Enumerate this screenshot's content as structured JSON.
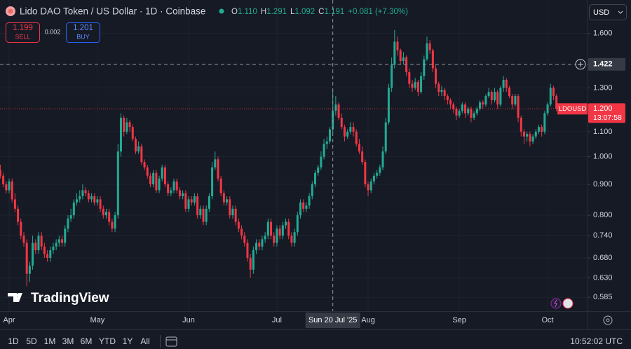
{
  "header": {
    "title": "Lido DAO Token / US Dollar · 1D · Coinbase",
    "ohlc": [
      {
        "label": "O",
        "value": "1.110"
      },
      {
        "label": "H",
        "value": "1.291"
      },
      {
        "label": "L",
        "value": "1.092"
      },
      {
        "label": "C",
        "value": "1.191"
      }
    ],
    "change": "+0.081 (+7.30%)",
    "sell": {
      "price": "1.199",
      "label": "SELL"
    },
    "spread": "0.002",
    "buy": {
      "price": "1.201",
      "label": "BUY"
    },
    "currency": "USD"
  },
  "watermark": "TradingView",
  "toolbar": {
    "ranges": [
      "1D",
      "5D",
      "1M",
      "3M",
      "6M",
      "YTD",
      "1Y",
      "All"
    ],
    "time": "10:52:02 UTC"
  },
  "chart_data": {
    "type": "candlestick",
    "log_scale": true,
    "grid": true,
    "up_color": "#22ab94",
    "down_color": "#f23645",
    "ylim": [
      0.555,
      1.817
    ],
    "yticks": [
      0.585,
      {
        "value": 0.63,
        "label": "0.630"
      },
      {
        "value": 0.68,
        "label": "0.680"
      },
      {
        "value": 0.74,
        "label": "0.740"
      },
      {
        "value": 0.8,
        "label": "0.800"
      },
      {
        "value": 0.9,
        "label": "0.900"
      },
      {
        "value": 1.0,
        "label": "1.000"
      },
      {
        "value": 1.1,
        "label": "1.100"
      },
      {
        "value": 1.3,
        "label": "1.300"
      },
      {
        "value": 1.6,
        "label": "1.600"
      }
    ],
    "crosshair": {
      "price": 1.422,
      "category": 113,
      "date_label": "Sun 20 Jul '25"
    },
    "last_price": {
      "value": 1.2,
      "label": "1.200",
      "countdown": "13:07:58"
    },
    "categories": [
      null,
      null,
      null,
      "Apr",
      null,
      null,
      null,
      null,
      null,
      null,
      null,
      null,
      null,
      null,
      null,
      null,
      null,
      null,
      null,
      null,
      null,
      null,
      null,
      null,
      null,
      null,
      null,
      null,
      null,
      null,
      null,
      null,
      null,
      "May",
      null,
      null,
      null,
      null,
      null,
      null,
      null,
      null,
      null,
      null,
      null,
      null,
      null,
      null,
      null,
      null,
      null,
      null,
      null,
      null,
      null,
      null,
      null,
      null,
      null,
      null,
      null,
      null,
      null,
      null,
      "Jun",
      null,
      null,
      null,
      null,
      null,
      null,
      null,
      null,
      null,
      null,
      null,
      null,
      null,
      null,
      null,
      null,
      null,
      null,
      null,
      null,
      null,
      null,
      null,
      null,
      null,
      null,
      null,
      null,
      null,
      "Jul",
      null,
      null,
      null,
      null,
      null,
      null,
      null,
      null,
      null,
      null,
      null,
      null,
      null,
      null,
      null,
      null,
      null,
      null,
      null,
      null,
      null,
      null,
      null,
      null,
      null,
      null,
      null,
      null,
      null,
      null,
      "Aug",
      null,
      null,
      null,
      null,
      null,
      null,
      null,
      null,
      null,
      null,
      null,
      null,
      null,
      null,
      null,
      null,
      null,
      null,
      null,
      null,
      null,
      null,
      null,
      null,
      null,
      null,
      null,
      null,
      null,
      null,
      "Sep",
      null,
      null,
      null,
      null,
      null,
      null,
      null,
      null,
      null,
      null,
      null,
      null,
      null,
      null,
      null,
      null,
      null,
      null,
      null,
      null,
      null,
      null,
      null,
      null,
      null,
      null,
      null,
      null,
      null,
      "Oct",
      null,
      null,
      null
    ],
    "series": [
      {
        "name": "LDOUSD",
        "open": [
          0.95,
          0.93,
          0.9,
          0.88,
          0.91,
          0.85,
          0.82,
          0.78,
          0.74,
          0.72,
          0.64,
          0.66,
          0.72,
          0.7,
          0.74,
          0.71,
          0.69,
          0.68,
          0.7,
          0.71,
          0.72,
          0.73,
          0.72,
          0.76,
          0.79,
          0.8,
          0.84,
          0.85,
          0.86,
          0.88,
          0.87,
          0.85,
          0.86,
          0.84,
          0.85,
          0.82,
          0.8,
          0.81,
          0.78,
          0.76,
          0.8,
          1.02,
          1.16,
          1.1,
          1.14,
          1.12,
          1.07,
          1.02,
          1.04,
          0.98,
          0.96,
          0.93,
          0.9,
          0.94,
          0.88,
          0.92,
          0.96,
          0.9,
          0.87,
          0.88,
          0.91,
          0.88,
          0.86,
          0.87,
          0.82,
          0.85,
          0.84,
          0.86,
          0.8,
          0.82,
          0.78,
          0.82,
          0.86,
          0.96,
          0.99,
          0.92,
          0.87,
          0.84,
          0.85,
          0.8,
          0.82,
          0.78,
          0.76,
          0.74,
          0.72,
          0.68,
          0.65,
          0.7,
          0.72,
          0.71,
          0.73,
          0.74,
          0.78,
          0.74,
          0.72,
          0.76,
          0.74,
          0.77,
          0.78,
          0.74,
          0.72,
          0.75,
          0.8,
          0.84,
          0.82,
          0.83,
          0.86,
          0.9,
          0.94,
          0.96,
          1.0,
          1.05,
          1.06,
          1.11,
          1.191,
          1.22,
          1.16,
          1.12,
          1.08,
          1.1,
          1.12,
          1.1,
          1.05,
          1.02,
          0.98,
          0.9,
          0.88,
          0.91,
          0.93,
          0.94,
          0.96,
          1.02,
          1.14,
          1.3,
          1.42,
          1.55,
          1.5,
          1.44,
          1.46,
          1.38,
          1.32,
          1.3,
          1.33,
          1.28,
          1.36,
          1.45,
          1.54,
          1.5,
          1.4,
          1.32,
          1.28,
          1.29,
          1.26,
          1.24,
          1.22,
          1.2,
          1.17,
          1.19,
          1.22,
          1.18,
          1.2,
          1.16,
          1.18,
          1.2,
          1.23,
          1.22,
          1.26,
          1.28,
          1.24,
          1.28,
          1.22,
          1.3,
          1.34,
          1.3,
          1.26,
          1.22,
          1.26,
          1.16,
          1.1,
          1.08,
          1.09,
          1.06,
          1.08,
          1.1,
          1.12,
          1.1,
          1.18,
          1.22,
          1.3,
          1.26
        ],
        "high": [
          0.97,
          0.94,
          0.91,
          0.92,
          0.92,
          0.87,
          0.83,
          0.79,
          0.75,
          0.73,
          0.67,
          0.74,
          0.73,
          0.75,
          0.75,
          0.72,
          0.7,
          0.71,
          0.72,
          0.73,
          0.74,
          0.74,
          0.77,
          0.8,
          0.82,
          0.85,
          0.87,
          0.88,
          0.9,
          0.89,
          0.88,
          0.87,
          0.87,
          0.86,
          0.86,
          0.83,
          0.82,
          0.82,
          0.79,
          0.81,
          1.05,
          1.18,
          1.17,
          1.16,
          1.15,
          1.13,
          1.08,
          1.06,
          1.05,
          0.99,
          0.97,
          0.94,
          0.95,
          0.95,
          0.93,
          0.97,
          0.97,
          0.91,
          0.89,
          0.92,
          0.92,
          0.89,
          0.88,
          0.88,
          0.86,
          0.86,
          0.87,
          0.87,
          0.83,
          0.83,
          0.83,
          0.87,
          0.98,
          1.02,
          1.0,
          0.93,
          0.88,
          0.86,
          0.86,
          0.83,
          0.83,
          0.79,
          0.77,
          0.75,
          0.73,
          0.69,
          0.71,
          0.73,
          0.73,
          0.74,
          0.75,
          0.79,
          0.79,
          0.75,
          0.77,
          0.77,
          0.78,
          0.79,
          0.79,
          0.75,
          0.76,
          0.81,
          0.85,
          0.85,
          0.84,
          0.87,
          0.91,
          0.95,
          0.97,
          1.02,
          1.07,
          1.08,
          1.12,
          1.291,
          1.26,
          1.23,
          1.18,
          1.13,
          1.11,
          1.14,
          1.14,
          1.11,
          1.07,
          1.04,
          0.99,
          0.91,
          0.92,
          0.94,
          0.95,
          0.97,
          1.04,
          1.16,
          1.32,
          1.46,
          1.62,
          1.58,
          1.51,
          1.49,
          1.47,
          1.4,
          1.34,
          1.35,
          1.34,
          1.38,
          1.47,
          1.58,
          1.56,
          1.51,
          1.42,
          1.33,
          1.31,
          1.3,
          1.27,
          1.25,
          1.23,
          1.21,
          1.2,
          1.23,
          1.23,
          1.21,
          1.21,
          1.19,
          1.21,
          1.24,
          1.24,
          1.27,
          1.3,
          1.29,
          1.3,
          1.29,
          1.31,
          1.36,
          1.35,
          1.31,
          1.27,
          1.27,
          1.27,
          1.17,
          1.11,
          1.1,
          1.1,
          1.09,
          1.11,
          1.13,
          1.13,
          1.19,
          1.23,
          1.32,
          1.31,
          1.27
        ],
        "low": [
          0.92,
          0.89,
          0.87,
          0.87,
          0.84,
          0.81,
          0.77,
          0.73,
          0.71,
          0.61,
          0.62,
          0.65,
          0.69,
          0.69,
          0.7,
          0.68,
          0.67,
          0.67,
          0.69,
          0.7,
          0.71,
          0.71,
          0.71,
          0.75,
          0.78,
          0.79,
          0.83,
          0.84,
          0.85,
          0.86,
          0.84,
          0.84,
          0.83,
          0.83,
          0.81,
          0.79,
          0.79,
          0.77,
          0.75,
          0.75,
          0.79,
          1.0,
          1.08,
          1.09,
          1.1,
          1.06,
          1.01,
          1.01,
          0.97,
          0.95,
          0.92,
          0.89,
          0.89,
          0.87,
          0.87,
          0.91,
          0.89,
          0.86,
          0.86,
          0.87,
          0.87,
          0.85,
          0.85,
          0.81,
          0.81,
          0.83,
          0.83,
          0.79,
          0.79,
          0.77,
          0.77,
          0.81,
          0.85,
          0.95,
          0.91,
          0.86,
          0.83,
          0.83,
          0.79,
          0.79,
          0.77,
          0.75,
          0.73,
          0.71,
          0.67,
          0.63,
          0.64,
          0.69,
          0.7,
          0.7,
          0.72,
          0.73,
          0.73,
          0.71,
          0.71,
          0.73,
          0.73,
          0.76,
          0.73,
          0.71,
          0.71,
          0.74,
          0.79,
          0.81,
          0.81,
          0.82,
          0.85,
          0.89,
          0.93,
          0.95,
          0.99,
          1.03,
          1.05,
          1.092,
          1.17,
          1.15,
          1.11,
          1.06,
          1.07,
          1.09,
          1.08,
          1.04,
          1.01,
          0.97,
          0.89,
          0.86,
          0.87,
          0.9,
          0.92,
          0.93,
          0.95,
          1.01,
          1.13,
          1.28,
          1.4,
          1.47,
          1.42,
          1.42,
          1.36,
          1.3,
          1.28,
          1.29,
          1.26,
          1.27,
          1.34,
          1.44,
          1.48,
          1.38,
          1.3,
          1.26,
          1.26,
          1.24,
          1.22,
          1.2,
          1.18,
          1.15,
          1.16,
          1.18,
          1.16,
          1.17,
          1.14,
          1.15,
          1.17,
          1.19,
          1.2,
          1.21,
          1.25,
          1.22,
          1.23,
          1.2,
          1.21,
          1.28,
          1.28,
          1.25,
          1.2,
          1.21,
          1.14,
          1.08,
          1.05,
          1.06,
          1.04,
          1.05,
          1.07,
          1.09,
          1.08,
          1.09,
          1.17,
          1.21,
          1.24,
          1.19
        ],
        "close": [
          0.93,
          0.9,
          0.88,
          0.91,
          0.85,
          0.82,
          0.78,
          0.74,
          0.72,
          0.64,
          0.66,
          0.72,
          0.7,
          0.74,
          0.71,
          0.69,
          0.68,
          0.7,
          0.71,
          0.72,
          0.73,
          0.72,
          0.76,
          0.79,
          0.8,
          0.84,
          0.85,
          0.86,
          0.88,
          0.87,
          0.85,
          0.86,
          0.84,
          0.85,
          0.82,
          0.8,
          0.81,
          0.78,
          0.76,
          0.8,
          1.02,
          1.16,
          1.1,
          1.14,
          1.12,
          1.07,
          1.02,
          1.04,
          0.98,
          0.96,
          0.93,
          0.9,
          0.94,
          0.88,
          0.92,
          0.96,
          0.9,
          0.87,
          0.88,
          0.91,
          0.88,
          0.86,
          0.87,
          0.82,
          0.85,
          0.84,
          0.86,
          0.8,
          0.82,
          0.78,
          0.82,
          0.86,
          0.96,
          0.99,
          0.92,
          0.87,
          0.84,
          0.85,
          0.8,
          0.82,
          0.78,
          0.76,
          0.74,
          0.72,
          0.68,
          0.65,
          0.7,
          0.72,
          0.71,
          0.73,
          0.74,
          0.78,
          0.74,
          0.72,
          0.76,
          0.74,
          0.77,
          0.78,
          0.74,
          0.72,
          0.75,
          0.8,
          0.84,
          0.82,
          0.83,
          0.86,
          0.9,
          0.94,
          0.96,
          1.0,
          1.05,
          1.06,
          1.11,
          1.191,
          1.22,
          1.16,
          1.12,
          1.08,
          1.1,
          1.12,
          1.1,
          1.05,
          1.02,
          0.98,
          0.9,
          0.88,
          0.91,
          0.93,
          0.94,
          0.96,
          1.02,
          1.14,
          1.3,
          1.42,
          1.55,
          1.5,
          1.44,
          1.46,
          1.38,
          1.32,
          1.3,
          1.33,
          1.28,
          1.36,
          1.45,
          1.54,
          1.5,
          1.4,
          1.32,
          1.28,
          1.29,
          1.26,
          1.24,
          1.22,
          1.2,
          1.17,
          1.19,
          1.22,
          1.18,
          1.2,
          1.16,
          1.18,
          1.2,
          1.23,
          1.22,
          1.26,
          1.28,
          1.24,
          1.28,
          1.22,
          1.3,
          1.34,
          1.3,
          1.26,
          1.22,
          1.26,
          1.16,
          1.1,
          1.08,
          1.09,
          1.06,
          1.08,
          1.1,
          1.12,
          1.1,
          1.18,
          1.22,
          1.3,
          1.26,
          1.2
        ]
      }
    ]
  }
}
